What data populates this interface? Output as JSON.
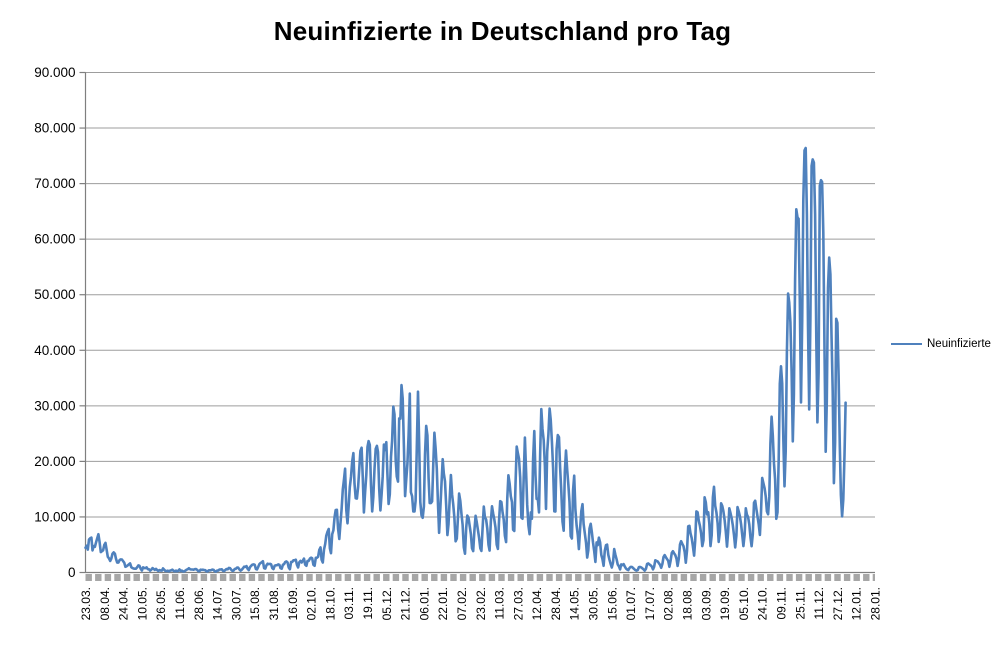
{
  "title": "Neuinfizierte in Deutschland pro Tag",
  "legend": {
    "label": "Neuinfizierte"
  },
  "colors": {
    "series": "#4F81BD",
    "gridline": "#9d9d9d",
    "axis": "#7f7f7f",
    "tick_strip": "#a6a6a6",
    "text": "#000000",
    "background": "#ffffff"
  },
  "chart_data": {
    "type": "line",
    "title": "Neuinfizierte in Deutschland pro Tag",
    "series_name": "Neuinfizierte",
    "series_color": "#4F81BD",
    "xlabel": "",
    "ylabel": "",
    "ylim": [
      0,
      90000
    ],
    "y_tick_interval": 10000,
    "y_tick_labels": [
      "0",
      "10.000",
      "20.000",
      "30.000",
      "40.000",
      "50.000",
      "60.000",
      "70.000",
      "80.000",
      "90.000"
    ],
    "x_tick_labels": [
      "23.03.",
      "08.04.",
      "24.04.",
      "10.05.",
      "26.05.",
      "11.06.",
      "28.06.",
      "14.07.",
      "30.07.",
      "15.08.",
      "31.08.",
      "16.09.",
      "02.10.",
      "18.10.",
      "03.11.",
      "19.11.",
      "05.12.",
      "21.12.",
      "06.01.",
      "22.01.",
      "07.02.",
      "23.02.",
      "11.03.",
      "27.03.",
      "12.04.",
      "28.04.",
      "14.05.",
      "30.05.",
      "15.06.",
      "01.07.",
      "17.07.",
      "02.08.",
      "18.08.",
      "03.09.",
      "19.09.",
      "05.10.",
      "24.10.",
      "09.11.",
      "25.11.",
      "11.12.",
      "27.12.",
      "12.01.",
      "28.01."
    ],
    "x_ticks_every_n_points": 16,
    "total_x_slots": 673,
    "x_label_rotation": -90,
    "grid": "horizontal",
    "legend_position": "right",
    "values": [
      4450,
      4800,
      4120,
      5940,
      6150,
      6290,
      3970,
      4750,
      4620,
      5450,
      6160,
      6890,
      5480,
      3680,
      3830,
      4000,
      4970,
      5320,
      4130,
      2820,
      2540,
      2080,
      2490,
      3380,
      3610,
      3380,
      2460,
      1780,
      1790,
      2240,
      2350,
      2340,
      2060,
      1740,
      1020,
      1140,
      1300,
      1480,
      1640,
      950,
      790,
      700,
      680,
      690,
      950,
      1280,
      1210,
      670,
      360,
      930,
      800,
      800,
      910,
      620,
      580,
      340,
      510,
      800,
      640,
      460,
      640,
      430,
      290,
      430,
      360,
      350,
      740,
      510,
      290,
      250,
      330,
      210,
      340,
      390,
      510,
      300,
      210,
      350,
      210,
      320,
      560,
      260,
      350,
      190,
      190,
      350,
      500,
      580,
      770,
      600,
      540,
      540,
      500,
      590,
      630,
      480,
      260,
      260,
      500,
      470,
      500,
      450,
      420,
      220,
      220,
      390,
      400,
      440,
      530,
      460,
      240,
      160,
      350,
      350,
      530,
      540,
      580,
      300,
      250,
      450,
      630,
      570,
      820,
      800,
      500,
      300,
      340,
      630,
      680,
      900,
      870,
      560,
      340,
      510,
      740,
      1050,
      1000,
      1150,
      660,
      430,
      970,
      1200,
      1400,
      1450,
      1400,
      630,
      550,
      1000,
      1510,
      1710,
      1830,
      2030,
      780,
      710,
      1280,
      1580,
      1500,
      1570,
      1480,
      790,
      610,
      1220,
      1300,
      1310,
      1450,
      1380,
      800,
      680,
      1400,
      1500,
      1890,
      2000,
      1790,
      900,
      600,
      1900,
      1900,
      2190,
      2190,
      2300,
      1350,
      920,
      1850,
      2090,
      1800,
      2140,
      2510,
      1410,
      1200,
      2090,
      2090,
      2500,
      2670,
      2560,
      1380,
      1200,
      2640,
      2640,
      2830,
      4060,
      4520,
      2300,
      1800,
      4120,
      5130,
      6640,
      7330,
      7830,
      4330,
      3480,
      6870,
      7600,
      10000,
      11250,
      11290,
      7850,
      6030,
      8690,
      11400,
      14960,
      16770,
      18680,
      11240,
      8860,
      12100,
      15350,
      17210,
      19990,
      21500,
      16020,
      13360,
      13300,
      15330,
      18490,
      21870,
      22460,
      16950,
      10820,
      14420,
      17560,
      22600,
      23650,
      22960,
      15740,
      11000,
      13550,
      18630,
      22270,
      22810,
      21690,
      15040,
      11170,
      14060,
      17270,
      23040,
      22050,
      23450,
      17770,
      12330,
      14050,
      20820,
      23680,
      29880,
      28440,
      20200,
      17270,
      16360,
      27730,
      27680,
      33730,
      31300,
      22770,
      13760,
      16640,
      19530,
      24740,
      32200,
      14460,
      13750,
      10980,
      10980,
      12890,
      22460,
      32550,
      22920,
      12690,
      10310,
      9850,
      11900,
      21240,
      26390,
      24690,
      16950,
      12500,
      12500,
      12800,
      19600,
      25160,
      22370,
      18680,
      12250,
      7140,
      11370,
      15970,
      20400,
      17860,
      16420,
      12000,
      6730,
      8680,
      13200,
      17550,
      14020,
      12320,
      9830,
      5610,
      6110,
      9700,
      14210,
      12910,
      10490,
      8620,
      4530,
      3380,
      8070,
      10240,
      9860,
      8350,
      6880,
      4370,
      3860,
      7560,
      10210,
      9110,
      7680,
      6250,
      4370,
      3880,
      8010,
      11870,
      9940,
      9560,
      7890,
      5010,
      3940,
      9020,
      11910,
      10580,
      9560,
      8100,
      5010,
      4250,
      9150,
      12830,
      12670,
      10790,
      9560,
      6600,
      5480,
      13440,
      17500,
      16030,
      13730,
      12670,
      7710,
      7490,
      15810,
      22660,
      21570,
      20470,
      17080,
      9870,
      9680,
      17050,
      24300,
      18130,
      12200,
      8500,
      6890,
      10810,
      9680,
      20410,
      25460,
      17480,
      13250,
      13260,
      10810,
      21690,
      29430,
      25830,
      23800,
      19190,
      11440,
      21700,
      24880,
      29520,
      27540,
      23590,
      18770,
      11020,
      10980,
      22230,
      24740,
      24330,
      18940,
      14600,
      9160,
      7530,
      18030,
      21950,
      18490,
      15690,
      12660,
      6540,
      6120,
      14910,
      17420,
      11340,
      8500,
      6710,
      4210,
      7890,
      11040,
      12300,
      8770,
      7080,
      5410,
      2680,
      4000,
      7910,
      8770,
      7190,
      5430,
      3850,
      1910,
      5410,
      4920,
      6260,
      5430,
      3170,
      2440,
      1200,
      3940,
      4920,
      5030,
      3190,
      2290,
      1490,
      900,
      1790,
      4220,
      3190,
      2440,
      1460,
      1110,
      550,
      1450,
      1330,
      1510,
      1080,
      730,
      540,
      440,
      810,
      1010,
      1000,
      820,
      610,
      440,
      340,
      440,
      970,
      1000,
      910,
      740,
      560,
      340,
      650,
      1550,
      1640,
      1460,
      1290,
      1080,
      550,
      1010,
      2200,
      2090,
      2000,
      1700,
      1390,
      850,
      1550,
      2770,
      3140,
      2740,
      2400,
      2100,
      1020,
      2130,
      3540,
      3830,
      3450,
      3130,
      2480,
      1180,
      2480,
      5050,
      5640,
      5160,
      4730,
      3670,
      1770,
      3910,
      8320,
      8400,
      7050,
      6190,
      4730,
      3040,
      5750,
      11000,
      10840,
      9280,
      8420,
      7050,
      4750,
      5840,
      13530,
      12630,
      10450,
      10840,
      8900,
      4750,
      6730,
      13570,
      15430,
      12030,
      10840,
      8900,
      5510,
      7340,
      12450,
      11970,
      11020,
      9460,
      7340,
      4660,
      7210,
      11560,
      10700,
      9730,
      8520,
      6730,
      4520,
      6670,
      11780,
      11020,
      10120,
      8680,
      6830,
      4750,
      6770,
      11550,
      10430,
      9970,
      8640,
      6290,
      4740,
      6880,
      12550,
      12930,
      11520,
      10100,
      8680,
      6770,
      10810,
      17020,
      16080,
      15150,
      13730,
      11000,
      10470,
      13730,
      23210,
      28040,
      24670,
      19590,
      16750,
      9660,
      10810,
      20400,
      33950,
      37120,
      34000,
      23540,
      15510,
      21830,
      39680,
      50200,
      48640,
      45080,
      36190,
      23610,
      32050,
      52830,
      65370,
      63920,
      63670,
      49000,
      30640,
      45330,
      66880,
      75960,
      76410,
      64510,
      44400,
      29360,
      45690,
      73210,
      74350,
      73790,
      64510,
      42050,
      27040,
      36060,
      69600,
      70610,
      70300,
      61290,
      40040,
      21740,
      30820,
      51300,
      56680,
      53700,
      42810,
      32650,
      16090,
      23430,
      45660,
      44930,
      35430,
      22810,
      13910,
      10100,
      13180,
      21100,
      30560
    ]
  }
}
